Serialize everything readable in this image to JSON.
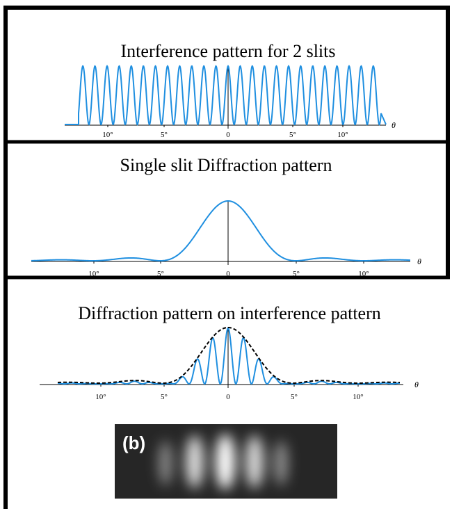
{
  "panels": [
    {
      "title": "Interference pattern for 2 slits",
      "tick_labels": [
        "10°",
        "5°",
        "0",
        "5°",
        "10°"
      ],
      "axis_label": "θ"
    },
    {
      "title": "Single slit Diffraction pattern",
      "tick_labels": [
        "10°",
        "5°",
        "0",
        "5°",
        "10°"
      ],
      "axis_label": "θ"
    },
    {
      "title": "Diffraction pattern on interference pattern",
      "tick_labels": [
        "10°",
        "5°",
        "0",
        "5°",
        "10°"
      ],
      "axis_label": "θ"
    }
  ],
  "photo": {
    "label": "(b)"
  }
}
